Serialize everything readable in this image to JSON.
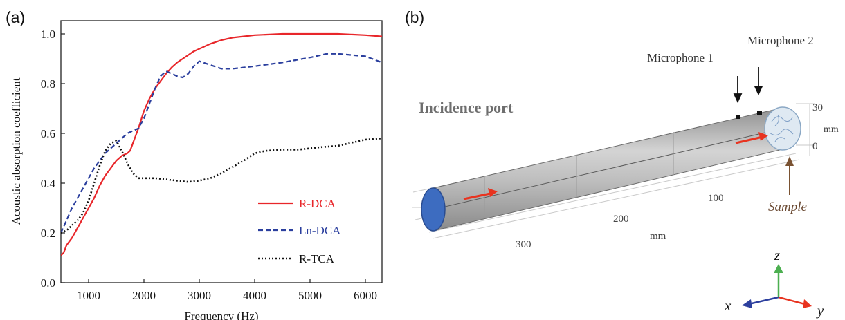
{
  "panels": {
    "a_label": "(a)",
    "b_label": "(b)"
  },
  "chart_data": {
    "type": "line",
    "title": "",
    "xlabel": "Frequency (Hz)",
    "ylabel": "Acoustic absorption coefficient",
    "xlim": [
      500,
      6300
    ],
    "ylim": [
      0,
      1.05
    ],
    "xticks": [
      1000,
      2000,
      3000,
      4000,
      5000,
      6000
    ],
    "yticks": [
      "0.0",
      "0.2",
      "0.4",
      "0.6",
      "0.8",
      "1.0"
    ],
    "grid": false,
    "legend_position": "bottom-right",
    "series": [
      {
        "name": "R-DCA",
        "color": "#e8262a",
        "style": "solid",
        "x": [
          500,
          550,
          600,
          700,
          800,
          900,
          1000,
          1100,
          1200,
          1300,
          1400,
          1500,
          1600,
          1700,
          1750,
          1800,
          1900,
          2000,
          2100,
          2200,
          2300,
          2400,
          2500,
          2600,
          2700,
          2800,
          2900,
          3000,
          3200,
          3400,
          3600,
          3800,
          4000,
          4500,
          5000,
          5500,
          6000,
          6300
        ],
        "y": [
          0.11,
          0.12,
          0.15,
          0.18,
          0.22,
          0.26,
          0.3,
          0.34,
          0.39,
          0.43,
          0.46,
          0.49,
          0.51,
          0.52,
          0.53,
          0.56,
          0.62,
          0.69,
          0.74,
          0.78,
          0.81,
          0.84,
          0.865,
          0.885,
          0.9,
          0.915,
          0.93,
          0.94,
          0.96,
          0.975,
          0.985,
          0.99,
          0.995,
          1.0,
          1.0,
          1.0,
          0.995,
          0.99
        ]
      },
      {
        "name": "Ln-DCA",
        "color": "#2b3f9e",
        "style": "dashed",
        "x": [
          500,
          600,
          700,
          800,
          900,
          1000,
          1100,
          1200,
          1300,
          1400,
          1500,
          1600,
          1700,
          1800,
          1900,
          2000,
          2100,
          2200,
          2300,
          2400,
          2500,
          2600,
          2700,
          2800,
          2900,
          3000,
          3200,
          3400,
          3600,
          3800,
          4000,
          4500,
          5000,
          5300,
          5500,
          6000,
          6300
        ],
        "y": [
          0.2,
          0.25,
          0.3,
          0.34,
          0.38,
          0.42,
          0.46,
          0.49,
          0.52,
          0.54,
          0.56,
          0.58,
          0.6,
          0.61,
          0.62,
          0.66,
          0.72,
          0.78,
          0.83,
          0.85,
          0.84,
          0.83,
          0.825,
          0.84,
          0.87,
          0.89,
          0.875,
          0.86,
          0.86,
          0.865,
          0.87,
          0.885,
          0.905,
          0.92,
          0.92,
          0.91,
          0.885
        ]
      },
      {
        "name": "R-TCA",
        "color": "#111111",
        "style": "dotted",
        "x": [
          500,
          600,
          700,
          800,
          900,
          1000,
          1100,
          1200,
          1300,
          1400,
          1500,
          1600,
          1700,
          1800,
          1900,
          2000,
          2200,
          2400,
          2600,
          2800,
          3000,
          3200,
          3400,
          3600,
          3800,
          4000,
          4200,
          4500,
          4800,
          5000,
          5200,
          5500,
          5800,
          6000,
          6300
        ],
        "y": [
          0.2,
          0.21,
          0.23,
          0.25,
          0.28,
          0.33,
          0.4,
          0.47,
          0.53,
          0.56,
          0.57,
          0.53,
          0.48,
          0.44,
          0.42,
          0.42,
          0.42,
          0.415,
          0.41,
          0.405,
          0.41,
          0.42,
          0.44,
          0.465,
          0.49,
          0.52,
          0.53,
          0.535,
          0.535,
          0.54,
          0.545,
          0.55,
          0.565,
          0.575,
          0.58
        ]
      }
    ]
  },
  "diagram": {
    "incidence_label": "Incidence port",
    "mic1_label": "Microphone 1",
    "mic2_label": "Microphone 2",
    "sample_label": "Sample",
    "length_ticks": [
      "100",
      "200",
      "300"
    ],
    "length_unit": "mm",
    "height_ticks": [
      "30",
      "0"
    ],
    "height_unit": "mm",
    "axes": {
      "z": "z",
      "x": "x",
      "y": "y"
    }
  }
}
